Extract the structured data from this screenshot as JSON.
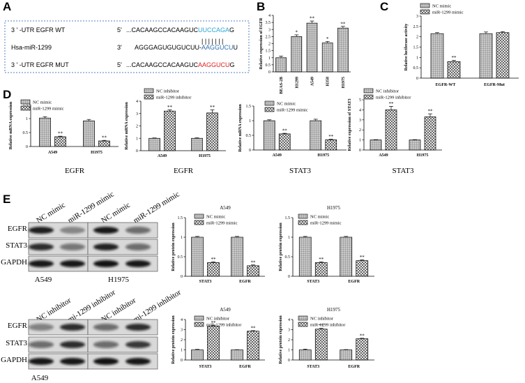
{
  "panel_letters": [
    "A",
    "B",
    "C",
    "D",
    "E"
  ],
  "panelA": {
    "rows": [
      {
        "label": "3 ' -UTR EGFR WT",
        "end": "5'",
        "seq_plain": "...CACAAGCCACAAGUC",
        "seq_hl": "UUCCAGA",
        "seq_tail": "G",
        "hl_color": "#2aa7d6"
      },
      {
        "label": "Hsa-miR-1299",
        "end": "3'",
        "seq_plain": "AGGGAGUGUGUCUU-",
        "seq_hl": "AAGGUCU",
        "seq_tail": "U",
        "hl_color": "#2e6fb5"
      },
      {
        "label": "3 ' -UTR EGFR MUT",
        "end": "5'",
        "seq_plain": "...CACAAGCCACAAGUC",
        "seq_hl": "AAGGUCU",
        "seq_tail": "G",
        "hl_color": "#e02020"
      }
    ],
    "pairing_bars": "| | | | | | |"
  },
  "blots": {
    "top": {
      "lane_labels": [
        "NC mimic",
        "miR-1299 mimic",
        "NC mimic",
        "miR-1299 mimic"
      ],
      "rows": [
        "EGFR",
        "STAT3",
        "GAPDH"
      ],
      "cell_lines": [
        "A549",
        "H1975"
      ]
    },
    "bottom": {
      "lane_labels": [
        "NC inhibitor",
        "mi-1299 inhibitor",
        "NC inhibitor",
        "mi-1299 inhibitor"
      ],
      "rows": [
        "EGFR",
        "STAT3",
        "GAPDH"
      ],
      "cell_lines": [
        "A549"
      ]
    }
  },
  "chart_data": [
    {
      "id": "B",
      "type": "bar",
      "categories": [
        "BEAS-2B",
        "H1299",
        "A549",
        "H358",
        "H1975"
      ],
      "values": [
        1.0,
        2.5,
        3.45,
        2.05,
        3.1
      ],
      "errors": [
        0.12,
        0.12,
        0.15,
        0.1,
        0.12
      ],
      "sig": [
        "",
        "*",
        "**",
        "*",
        "**"
      ],
      "ylabel": "Relative expression of EGFR",
      "ylim": [
        0,
        4
      ],
      "yticks": [
        0,
        0.5,
        1,
        1.5,
        2,
        2.5,
        3,
        3.5,
        4
      ],
      "legend": []
    },
    {
      "id": "C",
      "type": "bar",
      "categories": [
        "EGFR-WT",
        "EGFR-Mut"
      ],
      "series": [
        {
          "name": "NC mimic",
          "values": [
            2.15,
            2.15
          ],
          "errors": [
            0.05,
            0.08
          ],
          "sig": [
            "",
            ""
          ]
        },
        {
          "name": "miR-1299 mimic",
          "values": [
            0.8,
            2.2
          ],
          "errors": [
            0.06,
            0.05
          ],
          "sig": [
            "**",
            ""
          ]
        }
      ],
      "ylabel": "Relative luciferase activity",
      "ylim": [
        0,
        3.0
      ],
      "yticks": [
        0,
        0.5,
        1.0,
        1.5,
        2.0,
        2.5,
        3.0
      ],
      "legend": [
        "NC mimic",
        "miR-1299 mimic"
      ]
    },
    {
      "id": "D1",
      "type": "bar",
      "categories": [
        "A549",
        "H1975"
      ],
      "series": [
        {
          "name": "NC mimic",
          "values": [
            1.02,
            0.92
          ],
          "errors": [
            0.05,
            0.05
          ],
          "sig": [
            "",
            ""
          ]
        },
        {
          "name": "miR-1299 mimic",
          "values": [
            0.35,
            0.2
          ],
          "errors": [
            0.02,
            0.02
          ],
          "sig": [
            "**",
            "**"
          ]
        }
      ],
      "ylabel": "Relative mRNA expression",
      "ylim": [
        0,
        1.5
      ],
      "yticks": [
        0,
        0.5,
        1.0,
        1.5
      ],
      "legend": [
        "NC mimic",
        "miR-1299 mimic"
      ],
      "xtitle": "EGFR"
    },
    {
      "id": "D2",
      "type": "bar",
      "categories": [
        "A549",
        "H1975"
      ],
      "series": [
        {
          "name": "NC inhibitor",
          "values": [
            1.0,
            1.0
          ],
          "errors": [
            0.03,
            0.04
          ],
          "sig": [
            "",
            ""
          ]
        },
        {
          "name": "miR-1299 inhibitor",
          "values": [
            3.2,
            3.05
          ],
          "errors": [
            0.1,
            0.25
          ],
          "sig": [
            "**",
            "**"
          ]
        }
      ],
      "ylabel": "Relative mRNA expression",
      "ylim": [
        0,
        4
      ],
      "yticks": [
        0,
        1,
        2,
        3,
        4
      ],
      "legend": [
        "NC inhibitor",
        "miR-1299 inhibitor"
      ],
      "xtitle": "EGFR"
    },
    {
      "id": "D3",
      "type": "bar",
      "categories": [
        "A549",
        "H1975"
      ],
      "series": [
        {
          "name": "NC mimic",
          "values": [
            1.0,
            1.0
          ],
          "errors": [
            0.03,
            0.05
          ],
          "sig": [
            "",
            ""
          ]
        },
        {
          "name": "miR-1299 mimic",
          "values": [
            0.55,
            0.35
          ],
          "errors": [
            0.02,
            0.02
          ],
          "sig": [
            "**",
            "**"
          ]
        }
      ],
      "ylabel": "Relative mRNA expression",
      "ylim": [
        0,
        1.5
      ],
      "yticks": [
        0,
        0.5,
        1.0,
        1.5
      ],
      "legend": [
        "NC mimic",
        "miR-1299 mimic"
      ],
      "xtitle": "STAT3"
    },
    {
      "id": "D4",
      "type": "bar",
      "categories": [
        "A549",
        "H1975"
      ],
      "series": [
        {
          "name": "NC inhibitor",
          "values": [
            1.0,
            1.0
          ],
          "errors": [
            0.03,
            0.03
          ],
          "sig": [
            "",
            ""
          ]
        },
        {
          "name": "miR-1299 inhibitor",
          "values": [
            4.0,
            3.3
          ],
          "errors": [
            0.35,
            0.3
          ],
          "sig": [
            "**",
            "**"
          ]
        }
      ],
      "ylabel": "Relative expression of STAT3",
      "ylim": [
        0,
        5
      ],
      "yticks": [
        0,
        1,
        2,
        3,
        4,
        5
      ],
      "legend": [
        "NC inhibitor",
        "miR-1299 inhibitor"
      ],
      "xtitle": "STAT3"
    },
    {
      "id": "E1",
      "type": "bar",
      "title": "A549",
      "categories": [
        "STAT3",
        "EGFR"
      ],
      "series": [
        {
          "name": "NC mimic",
          "values": [
            1.0,
            1.0
          ],
          "errors": [
            0.02,
            0.02
          ],
          "sig": [
            "",
            ""
          ]
        },
        {
          "name": "miR-1299 mimic",
          "values": [
            0.35,
            0.27
          ],
          "errors": [
            0.02,
            0.02
          ],
          "sig": [
            "**",
            "**"
          ]
        }
      ],
      "ylabel": "Relative protein expression",
      "ylim": [
        0,
        1.5
      ],
      "yticks": [
        0,
        0.5,
        1.0,
        1.5
      ],
      "legend": [
        "NC mimic",
        "miR-1299 mimic"
      ]
    },
    {
      "id": "E2",
      "type": "bar",
      "title": "H1975",
      "categories": [
        "STAT3",
        "EGFR"
      ],
      "series": [
        {
          "name": "NC mimic",
          "values": [
            1.0,
            1.0
          ],
          "errors": [
            0.02,
            0.02
          ],
          "sig": [
            "",
            ""
          ]
        },
        {
          "name": "miR-1299 mimic",
          "values": [
            0.35,
            0.4
          ],
          "errors": [
            0.02,
            0.02
          ],
          "sig": [
            "**",
            "**"
          ]
        }
      ],
      "ylabel": "Relative protein expression",
      "ylim": [
        0,
        1.5
      ],
      "yticks": [
        0,
        0.5,
        1.0,
        1.5
      ],
      "legend": [
        "NC mimic",
        "miR-1299 mimic"
      ]
    },
    {
      "id": "E3",
      "type": "bar",
      "title": "A549",
      "categories": [
        "STAT3",
        "EGFR"
      ],
      "series": [
        {
          "name": "NC inhibitor",
          "values": [
            1.0,
            1.0
          ],
          "errors": [
            0.05,
            0.02
          ],
          "sig": [
            "",
            ""
          ]
        },
        {
          "name": "miR-1299 inhibitor",
          "values": [
            3.35,
            2.85
          ],
          "errors": [
            0.08,
            0.05
          ],
          "sig": [
            "**",
            "**"
          ]
        }
      ],
      "ylabel": "Relative protein expression",
      "ylim": [
        0,
        4
      ],
      "yticks": [
        0,
        1,
        2,
        3,
        4
      ],
      "legend": [
        "NC inhibitor",
        "miR-1299 inhibitor"
      ]
    },
    {
      "id": "E4",
      "type": "bar",
      "title": "H1975",
      "categories": [
        "STAT3",
        "EGFR"
      ],
      "series": [
        {
          "name": "NC inhibitor",
          "values": [
            1.0,
            1.0
          ],
          "errors": [
            0.08,
            0.03
          ],
          "sig": [
            "",
            ""
          ]
        },
        {
          "name": "miR-1299 inhibitor",
          "values": [
            3.05,
            2.1
          ],
          "errors": [
            0.08,
            0.05
          ],
          "sig": [
            "**",
            "**"
          ]
        }
      ],
      "ylabel": "Relative protein expression",
      "ylim": [
        0,
        4
      ],
      "yticks": [
        0,
        1,
        2,
        3,
        4
      ],
      "legend": [
        "NC inhibitor",
        "miR-1299 inhibitor"
      ]
    }
  ]
}
